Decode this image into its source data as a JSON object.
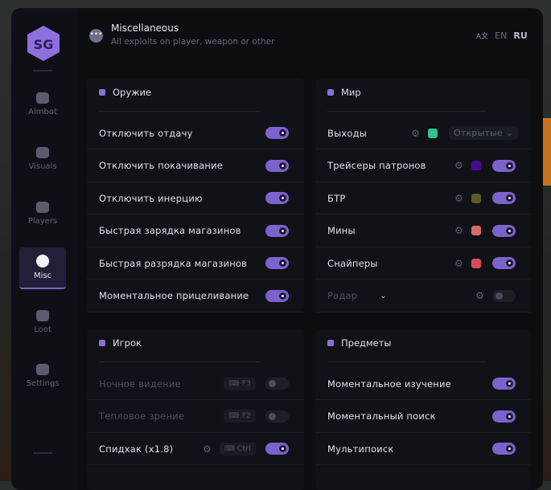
{
  "header": {
    "title": "Miscellaneous",
    "subtitle": "All exploits on player, weapon or other",
    "languages": [
      "EN",
      "RU"
    ],
    "active_language": "RU"
  },
  "logo": "SG",
  "sidebar": {
    "items": [
      {
        "label": "Aimbot",
        "icon": "alien-icon"
      },
      {
        "label": "Visuals",
        "icon": "vr-goggles-icon"
      },
      {
        "label": "Players",
        "icon": "users-icon"
      },
      {
        "label": "Misc",
        "icon": "dots-icon",
        "active": true
      },
      {
        "label": "Loot",
        "icon": "briefcase-icon"
      },
      {
        "label": "Settings",
        "icon": "list-icon"
      }
    ]
  },
  "weapon": {
    "title": "Оружие",
    "rows": [
      {
        "label": "Отключить отдачу",
        "on": true
      },
      {
        "label": "Отключить покачивание",
        "on": true
      },
      {
        "label": "Отключить инерцию",
        "on": true
      },
      {
        "label": "Быстрая зарядка магазинов",
        "on": true
      },
      {
        "label": "Быстрая разрядка магазинов",
        "on": true
      },
      {
        "label": "Моментальное прицеливание",
        "on": true
      }
    ]
  },
  "world": {
    "title": "Мир",
    "rows": [
      {
        "label": "Выходы",
        "color": "#2ec48f",
        "select": "Открытые"
      },
      {
        "label": "Трейсеры патронов",
        "color": "#4a0a8c",
        "on": true
      },
      {
        "label": "БТР",
        "color": "#5a5a22",
        "on": true
      },
      {
        "label": "Мины",
        "color": "#d86a6a",
        "on": true
      },
      {
        "label": "Снайперы",
        "color": "#d84c58",
        "on": true
      },
      {
        "label": "Радар",
        "on": false
      }
    ]
  },
  "player": {
    "title": "Игрок",
    "rows": [
      {
        "label": "Ночное видение",
        "key": "F3",
        "on": false
      },
      {
        "label": "Тепловое зрение",
        "key": "F2",
        "on": false
      },
      {
        "label": "Спидхак (x1.8)",
        "key": "Ctrl",
        "on": true
      }
    ]
  },
  "items": {
    "title": "Предметы",
    "rows": [
      {
        "label": "Моментальное изучение",
        "on": true
      },
      {
        "label": "Моментальный поиск",
        "on": true
      },
      {
        "label": "Мультипоиск",
        "on": true
      }
    ]
  },
  "colors": {
    "accent": "#7c62cc",
    "background": "#0d0e12"
  }
}
